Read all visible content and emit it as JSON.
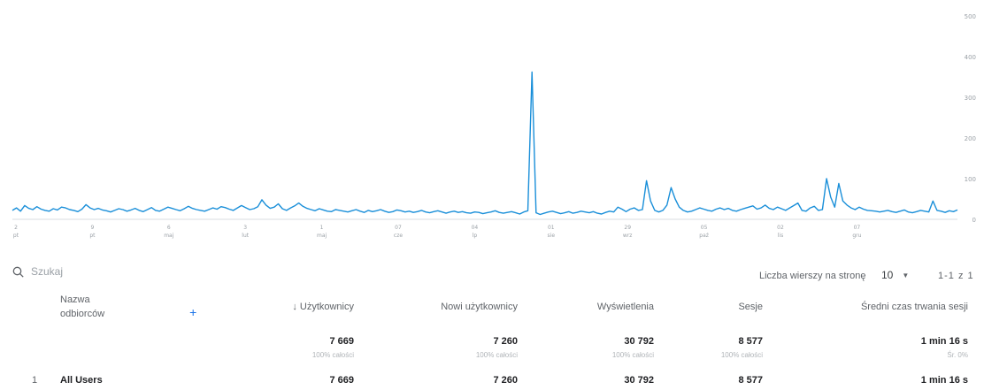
{
  "chart_data": {
    "type": "line",
    "y_ticks": [
      "500",
      "400",
      "300",
      "200",
      "100",
      "0"
    ],
    "ylim": [
      0,
      500
    ],
    "x_ticks": [
      {
        "day": "2",
        "wd": "pt"
      },
      {
        "day": "9",
        "wd": "pt"
      },
      {
        "day": "6",
        "wd": "maj"
      },
      {
        "day": "3",
        "wd": "lut"
      },
      {
        "day": "1",
        "wd": "maj"
      },
      {
        "day": "07",
        "wd": "cze"
      },
      {
        "day": "04",
        "wd": "lp"
      },
      {
        "day": "01",
        "wd": "sie"
      },
      {
        "day": "29",
        "wd": "wrz"
      },
      {
        "day": "05",
        "wd": "paź"
      },
      {
        "day": "02",
        "wd": "lis"
      },
      {
        "day": "07",
        "wd": "gru"
      }
    ],
    "color": "#1a8fd9",
    "series": [
      {
        "values": [
          22,
          28,
          20,
          34,
          27,
          24,
          31,
          25,
          22,
          20,
          26,
          23,
          30,
          28,
          24,
          22,
          19,
          25,
          36,
          28,
          24,
          27,
          23,
          21,
          18,
          22,
          26,
          24,
          20,
          23,
          27,
          22,
          19,
          24,
          29,
          22,
          20,
          25,
          30,
          27,
          24,
          21,
          26,
          32,
          27,
          24,
          22,
          20,
          24,
          28,
          25,
          31,
          29,
          25,
          22,
          28,
          34,
          29,
          24,
          26,
          31,
          48,
          35,
          27,
          30,
          38,
          26,
          22,
          28,
          33,
          40,
          32,
          27,
          24,
          21,
          26,
          23,
          20,
          19,
          24,
          22,
          20,
          18,
          21,
          24,
          20,
          17,
          22,
          19,
          21,
          24,
          20,
          17,
          19,
          23,
          21,
          18,
          20,
          17,
          19,
          22,
          18,
          16,
          19,
          21,
          18,
          15,
          18,
          20,
          17,
          19,
          16,
          15,
          18,
          17,
          14,
          16,
          18,
          21,
          17,
          15,
          17,
          19,
          16,
          13,
          18,
          21,
          362,
          16,
          12,
          15,
          18,
          20,
          17,
          14,
          16,
          19,
          15,
          17,
          20,
          18,
          16,
          19,
          15,
          13,
          17,
          20,
          18,
          30,
          25,
          19,
          25,
          28,
          22,
          24,
          95,
          45,
          22,
          18,
          22,
          35,
          78,
          50,
          30,
          22,
          18,
          20,
          24,
          28,
          25,
          22,
          20,
          25,
          28,
          24,
          27,
          22,
          20,
          24,
          27,
          30,
          33,
          25,
          28,
          35,
          27,
          24,
          30,
          26,
          22,
          28,
          34,
          40,
          22,
          20,
          28,
          32,
          22,
          24,
          100,
          55,
          30,
          88,
          45,
          35,
          28,
          24,
          30,
          25,
          22,
          21,
          20,
          18,
          20,
          22,
          19,
          17,
          20,
          23,
          18,
          16,
          19,
          22,
          20,
          18,
          45,
          22,
          20,
          17,
          21,
          19,
          23
        ]
      }
    ]
  },
  "toolbar": {
    "search_placeholder": "Szukaj",
    "rows_label": "Liczba wierszy na stronę",
    "rows_value": "10",
    "pager": "1-1 z 1"
  },
  "table": {
    "headers": {
      "dimension": "Nazwa odbiorców",
      "users": "↓ Użytkownicy",
      "new_users": "Nowi użytkownicy",
      "views": "Wyświetlenia",
      "sessions": "Sesje",
      "avg_time": "Średni czas trwania sesji"
    },
    "totals": {
      "users": "7 669",
      "users_sub": "100% całości",
      "new_users": "7 260",
      "new_users_sub": "100% całości",
      "views": "30 792",
      "views_sub": "100% całości",
      "sessions": "8 577",
      "sessions_sub": "100% całości",
      "avg_time": "1 min 16 s",
      "avg_time_sub": "Śr. 0%"
    },
    "rows": [
      {
        "index": "1",
        "name": "All Users",
        "users": "7 669",
        "new_users": "7 260",
        "views": "30 792",
        "sessions": "8 577",
        "avg_time": "1 min 16 s"
      }
    ]
  }
}
